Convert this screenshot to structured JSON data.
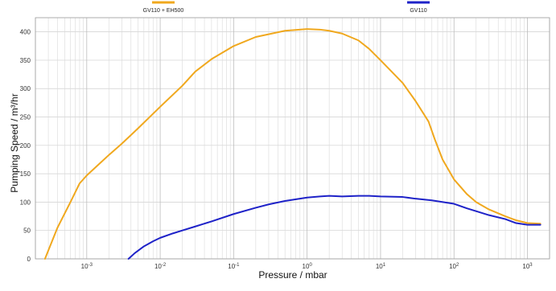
{
  "chart_data": {
    "type": "line",
    "xlabel": "Pressure / mbar",
    "ylabel": "Pumping Speed / m³/hr",
    "xscale": "log",
    "xlim": [
      0.0002,
      2000
    ],
    "ylim": [
      0,
      425
    ],
    "grid": true,
    "legend_placement": "top",
    "y_ticks": [
      0,
      50,
      100,
      150,
      200,
      250,
      300,
      350,
      400
    ],
    "x_tick_labels": [
      {
        "value": 0.001,
        "base": "10",
        "exp": "-3"
      },
      {
        "value": 0.01,
        "base": "10",
        "exp": "-2"
      },
      {
        "value": 0.1,
        "base": "10",
        "exp": "-1"
      },
      {
        "value": 1,
        "base": "10",
        "exp": "0"
      },
      {
        "value": 10,
        "base": "10",
        "exp": "1"
      },
      {
        "value": 100,
        "base": "10",
        "exp": "2"
      },
      {
        "value": 1000,
        "base": "10",
        "exp": "3"
      }
    ],
    "series": [
      {
        "name": "GV110 + EH500",
        "color": "#F0A81E",
        "x": [
          0.00027,
          0.0004,
          0.0006,
          0.0008,
          0.001,
          0.0015,
          0.002,
          0.003,
          0.005,
          0.01,
          0.02,
          0.03,
          0.05,
          0.1,
          0.2,
          0.5,
          1,
          1.5,
          2,
          3,
          5,
          7,
          10,
          20,
          30,
          45,
          55,
          70,
          100,
          150,
          200,
          300,
          500,
          700,
          1000,
          1500
        ],
        "y": [
          0,
          55,
          100,
          133,
          147,
          168,
          183,
          203,
          230,
          268,
          305,
          330,
          352,
          375,
          391,
          402,
          405,
          404,
          402,
          397,
          385,
          370,
          350,
          310,
          278,
          242,
          210,
          175,
          140,
          114,
          100,
          87,
          75,
          68,
          63,
          62
        ]
      },
      {
        "name": "GV110",
        "color": "#1E22C8",
        "x": [
          0.0037,
          0.0045,
          0.006,
          0.008,
          0.01,
          0.015,
          0.02,
          0.03,
          0.05,
          0.1,
          0.2,
          0.3,
          0.5,
          1,
          1.5,
          2,
          3,
          5,
          7,
          10,
          20,
          30,
          50,
          100,
          150,
          200,
          300,
          500,
          700,
          1000,
          1500
        ],
        "y": [
          0,
          10,
          22,
          31,
          37,
          45,
          50,
          57,
          66,
          79,
          90,
          96,
          102,
          108,
          110,
          111,
          110,
          111,
          111,
          110,
          109,
          106,
          103,
          97,
          89,
          84,
          77,
          70,
          63,
          60,
          60
        ]
      }
    ]
  }
}
